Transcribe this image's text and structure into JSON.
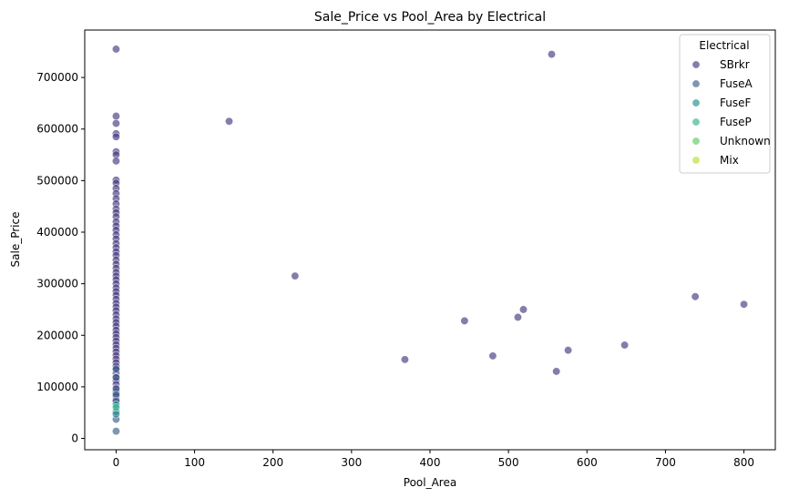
{
  "chart_data": {
    "type": "scatter",
    "title": "Sale_Price vs Pool_Area by Electrical",
    "xlabel": "Pool_Area",
    "ylabel": "Sale_Price",
    "xlim": [
      -40,
      840
    ],
    "ylim": [
      -22000,
      792000
    ],
    "xticks": [
      0,
      100,
      200,
      300,
      400,
      500,
      600,
      700,
      800
    ],
    "yticks": [
      0,
      100000,
      200000,
      300000,
      400000,
      500000,
      600000,
      700000
    ],
    "grid": false,
    "legend": {
      "title": "Electrical",
      "placement": "top-right"
    },
    "series": [
      {
        "name": "SBrkr",
        "color": "#45377e",
        "points": [
          [
            0,
            755000
          ],
          [
            0,
            625000
          ],
          [
            0,
            611000
          ],
          [
            0,
            591000
          ],
          [
            0,
            585000
          ],
          [
            0,
            556000
          ],
          [
            0,
            550000
          ],
          [
            0,
            538000
          ],
          [
            0,
            501000
          ],
          [
            0,
            495000
          ],
          [
            0,
            485000
          ],
          [
            0,
            475000
          ],
          [
            0,
            465000
          ],
          [
            0,
            455000
          ],
          [
            0,
            445000
          ],
          [
            0,
            438000
          ],
          [
            0,
            430000
          ],
          [
            0,
            420000
          ],
          [
            0,
            412000
          ],
          [
            0,
            404000
          ],
          [
            0,
            395000
          ],
          [
            0,
            387000
          ],
          [
            0,
            378000
          ],
          [
            0,
            370000
          ],
          [
            0,
            362000
          ],
          [
            0,
            355000
          ],
          [
            0,
            346000
          ],
          [
            0,
            338000
          ],
          [
            0,
            330000
          ],
          [
            0,
            322000
          ],
          [
            0,
            315000
          ],
          [
            0,
            308000
          ],
          [
            0,
            300000
          ],
          [
            0,
            292000
          ],
          [
            0,
            285000
          ],
          [
            0,
            278000
          ],
          [
            0,
            270000
          ],
          [
            0,
            262000
          ],
          [
            0,
            255000
          ],
          [
            0,
            248000
          ],
          [
            0,
            240000
          ],
          [
            0,
            232000
          ],
          [
            0,
            225000
          ],
          [
            0,
            218000
          ],
          [
            0,
            210000
          ],
          [
            0,
            203000
          ],
          [
            0,
            196000
          ],
          [
            0,
            189000
          ],
          [
            0,
            182000
          ],
          [
            0,
            175000
          ],
          [
            0,
            168000
          ],
          [
            0,
            161000
          ],
          [
            0,
            154000
          ],
          [
            0,
            147000
          ],
          [
            0,
            140000
          ],
          [
            0,
            133000
          ],
          [
            0,
            126000
          ],
          [
            0,
            119000
          ],
          [
            0,
            112000
          ],
          [
            0,
            105000
          ],
          [
            0,
            98000
          ],
          [
            0,
            90000
          ],
          [
            0,
            82000
          ],
          [
            0,
            75000
          ],
          [
            144,
            615000
          ],
          [
            228,
            315000
          ],
          [
            368,
            153000
          ],
          [
            444,
            228000
          ],
          [
            480,
            160000
          ],
          [
            512,
            235000
          ],
          [
            519,
            250000
          ],
          [
            555,
            745000
          ],
          [
            561,
            130000
          ],
          [
            576,
            171000
          ],
          [
            648,
            181000
          ],
          [
            738,
            275000
          ],
          [
            800,
            260000
          ]
        ]
      },
      {
        "name": "FuseA",
        "color": "#3b5d8a",
        "points": [
          [
            0,
            135000
          ],
          [
            0,
            118000
          ],
          [
            0,
            96000
          ],
          [
            0,
            85000
          ],
          [
            0,
            72000
          ],
          [
            0,
            52000
          ],
          [
            0,
            37000
          ],
          [
            0,
            14000
          ]
        ]
      },
      {
        "name": "FuseF",
        "color": "#218f8d",
        "points": [
          [
            0,
            65000
          ],
          [
            0,
            47000
          ]
        ]
      },
      {
        "name": "FuseP",
        "color": "#2cb38b",
        "points": [
          [
            0,
            60000
          ]
        ]
      },
      {
        "name": "Unknown",
        "color": "#5ec962",
        "points": []
      },
      {
        "name": "Mix",
        "color": "#b5de2b",
        "points": []
      }
    ]
  }
}
